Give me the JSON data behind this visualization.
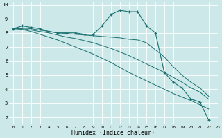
{
  "xlabel": "Humidex (Indice chaleur)",
  "bg_color": "#cce8e8",
  "line_color": "#1a7070",
  "grid_color": "#ffffff",
  "xlim": [
    -0.5,
    23
  ],
  "ylim": [
    1.5,
    10.2
  ],
  "yticks": [
    2,
    3,
    4,
    5,
    6,
    7,
    8,
    9,
    10
  ],
  "xticks": [
    0,
    1,
    2,
    3,
    4,
    5,
    6,
    7,
    8,
    9,
    10,
    11,
    12,
    13,
    14,
    15,
    16,
    17,
    18,
    19,
    20,
    21,
    22,
    23
  ],
  "lines": [
    {
      "y": [
        8.3,
        8.5,
        8.4,
        8.3,
        8.1,
        8.0,
        8.0,
        8.0,
        7.9,
        7.9,
        8.5,
        9.3,
        9.6,
        9.5,
        9.5,
        8.5,
        8.0,
        5.2,
        4.5,
        4.1,
        3.3,
        3.1,
        1.8
      ],
      "marker": true
    },
    {
      "y": [
        8.3,
        8.35,
        8.3,
        8.2,
        8.1,
        8.0,
        7.95,
        7.9,
        7.85,
        7.8,
        7.75,
        7.7,
        7.65,
        7.55,
        7.5,
        7.3,
        6.8,
        6.3,
        5.6,
        5.0,
        4.5,
        4.1,
        3.5
      ],
      "marker": false
    },
    {
      "y": [
        8.3,
        8.3,
        8.2,
        8.1,
        8.0,
        7.85,
        7.7,
        7.6,
        7.45,
        7.3,
        7.1,
        6.9,
        6.65,
        6.4,
        6.1,
        5.8,
        5.5,
        5.2,
        4.85,
        4.5,
        4.1,
        3.8,
        3.3
      ],
      "marker": false
    },
    {
      "y": [
        8.3,
        8.25,
        8.1,
        7.9,
        7.7,
        7.5,
        7.25,
        7.0,
        6.75,
        6.5,
        6.2,
        5.9,
        5.55,
        5.2,
        4.9,
        4.6,
        4.3,
        4.0,
        3.7,
        3.45,
        3.2,
        2.9,
        2.6
      ],
      "marker": false
    }
  ]
}
